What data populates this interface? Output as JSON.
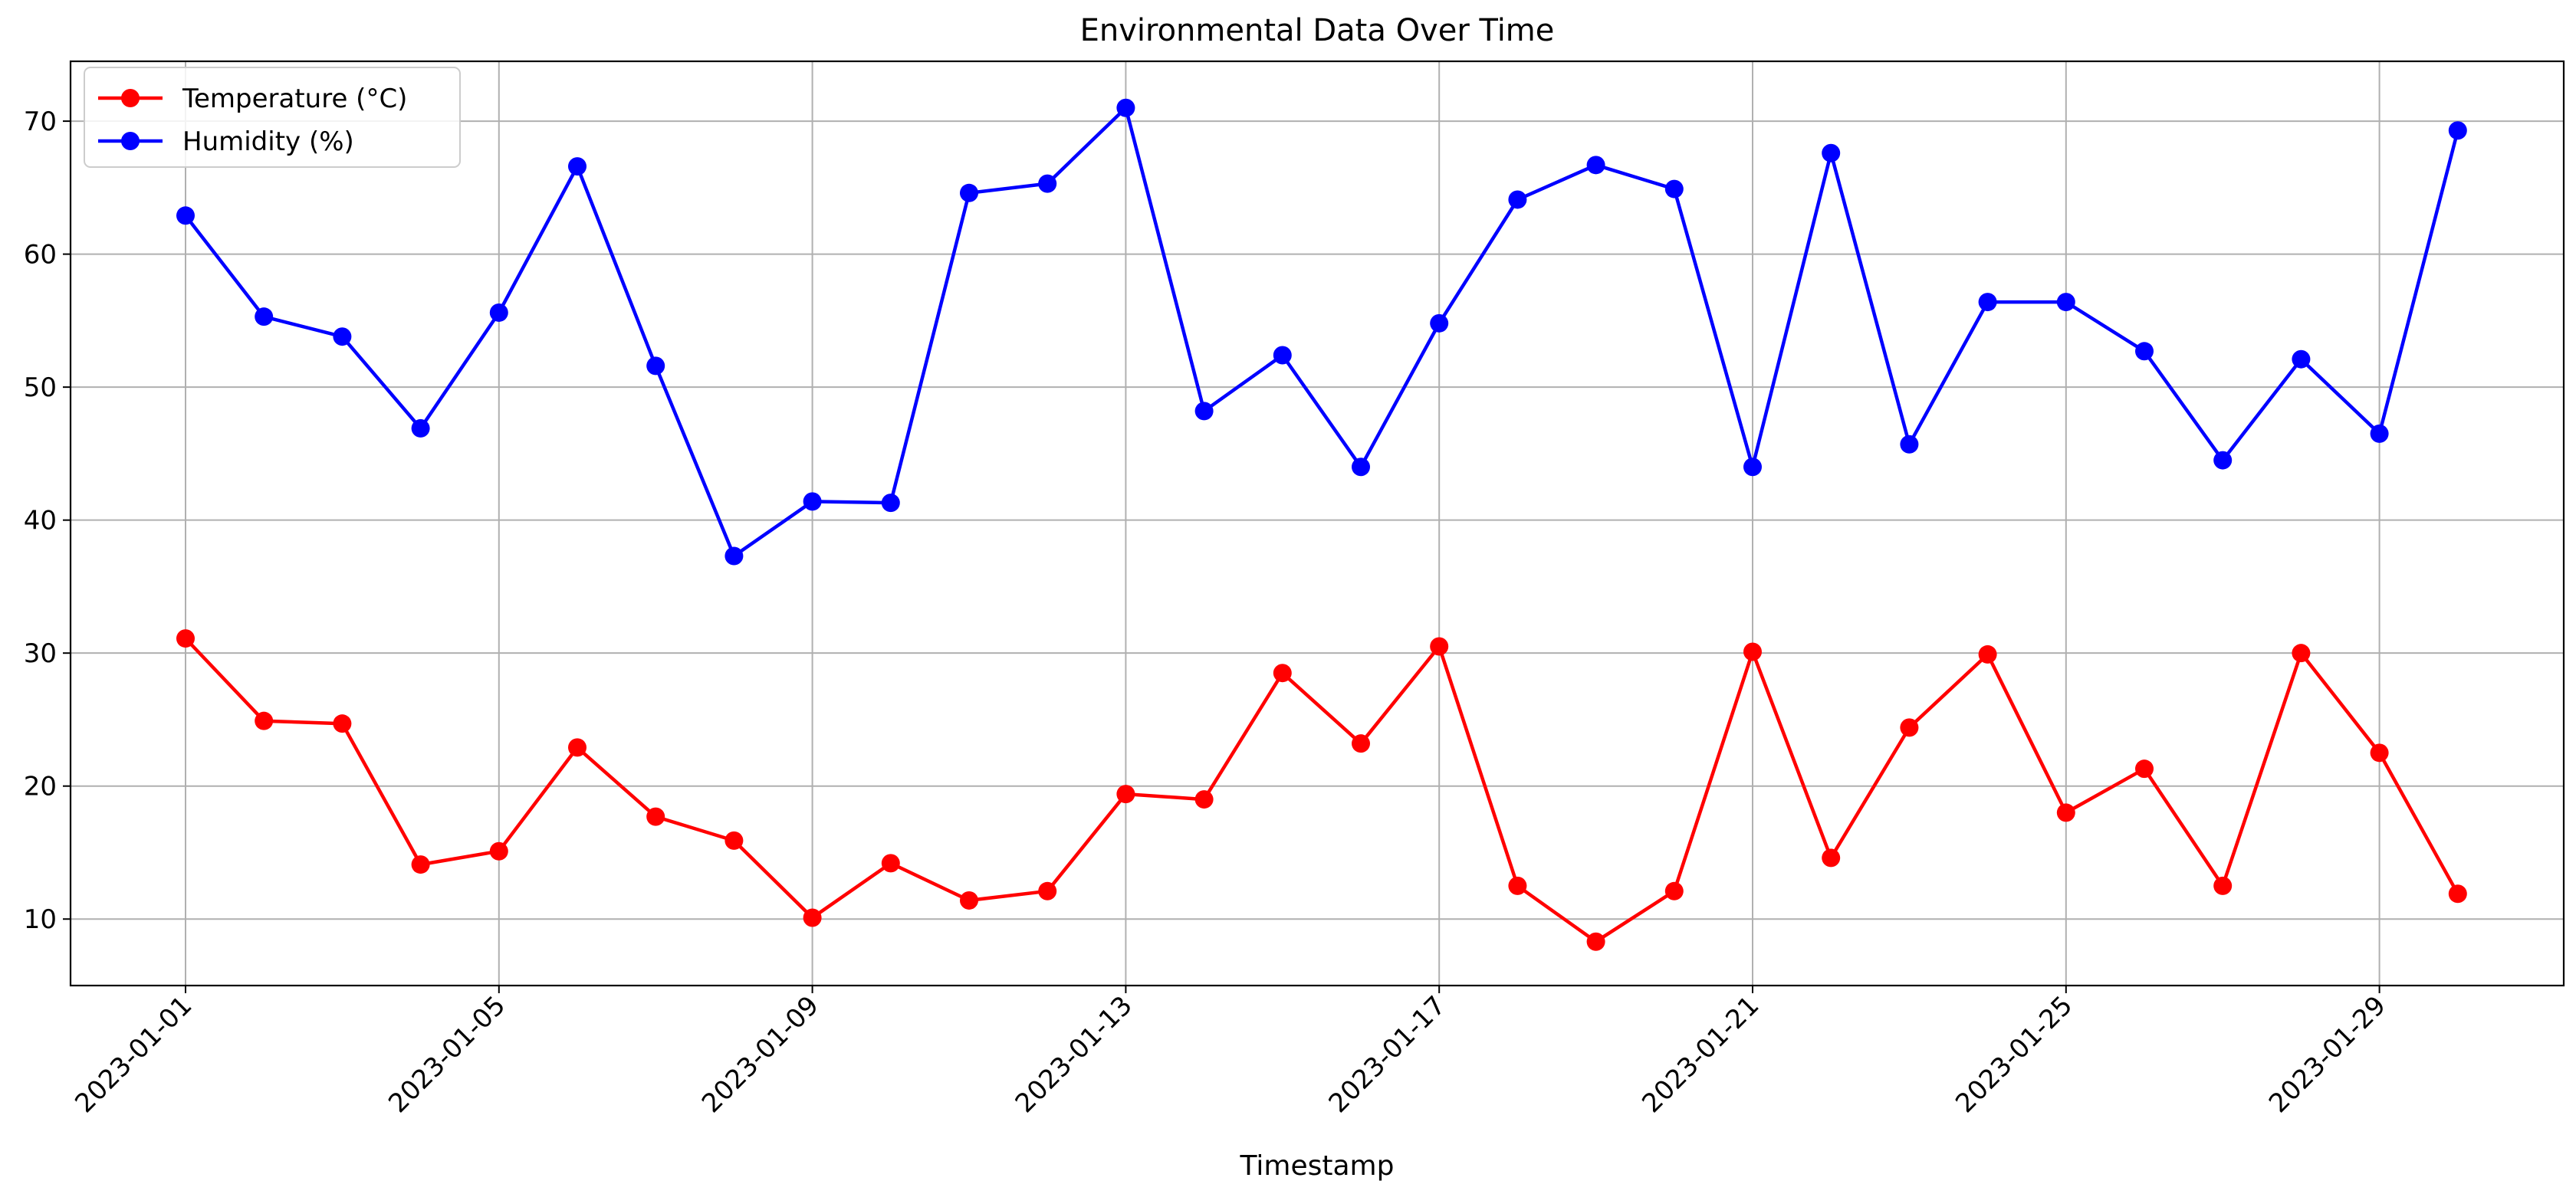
{
  "chart_data": {
    "type": "line",
    "title": "Environmental Data Over Time",
    "xlabel": "Timestamp",
    "ylabel": "",
    "x": [
      "2023-01-01",
      "2023-01-02",
      "2023-01-03",
      "2023-01-04",
      "2023-01-05",
      "2023-01-06",
      "2023-01-07",
      "2023-01-08",
      "2023-01-09",
      "2023-01-10",
      "2023-01-11",
      "2023-01-12",
      "2023-01-13",
      "2023-01-14",
      "2023-01-15",
      "2023-01-16",
      "2023-01-17",
      "2023-01-18",
      "2023-01-19",
      "2023-01-20",
      "2023-01-21",
      "2023-01-22",
      "2023-01-23",
      "2023-01-24",
      "2023-01-25",
      "2023-01-26",
      "2023-01-27",
      "2023-01-28",
      "2023-01-29",
      "2023-01-30"
    ],
    "x_ticks": [
      "2023-01-01",
      "2023-01-05",
      "2023-01-09",
      "2023-01-13",
      "2023-01-17",
      "2023-01-21",
      "2023-01-25",
      "2023-01-29"
    ],
    "y_ticks": [
      10,
      20,
      30,
      40,
      50,
      60,
      70
    ],
    "ylim": [
      5,
      74.5
    ],
    "grid": true,
    "legend_position": "top-left",
    "series": [
      {
        "name": "Temperature (°C)",
        "color": "#ff0000",
        "values": [
          31.1,
          24.9,
          24.7,
          14.1,
          15.1,
          22.9,
          17.7,
          15.9,
          10.1,
          14.2,
          11.4,
          12.1,
          19.4,
          19.0,
          28.5,
          23.2,
          30.5,
          12.5,
          8.3,
          12.1,
          30.1,
          14.6,
          24.4,
          29.9,
          18.0,
          21.3,
          12.5,
          30.0,
          22.5,
          11.9
        ]
      },
      {
        "name": "Humidity (%)",
        "color": "#0000ff",
        "values": [
          62.9,
          55.3,
          53.8,
          46.9,
          55.6,
          66.6,
          51.6,
          37.3,
          41.4,
          41.3,
          64.6,
          65.3,
          71.0,
          48.2,
          52.4,
          44.0,
          54.8,
          64.1,
          66.7,
          64.9,
          44.0,
          67.6,
          45.7,
          56.4,
          56.4,
          52.7,
          44.5,
          52.1,
          46.5,
          69.3
        ]
      }
    ]
  }
}
